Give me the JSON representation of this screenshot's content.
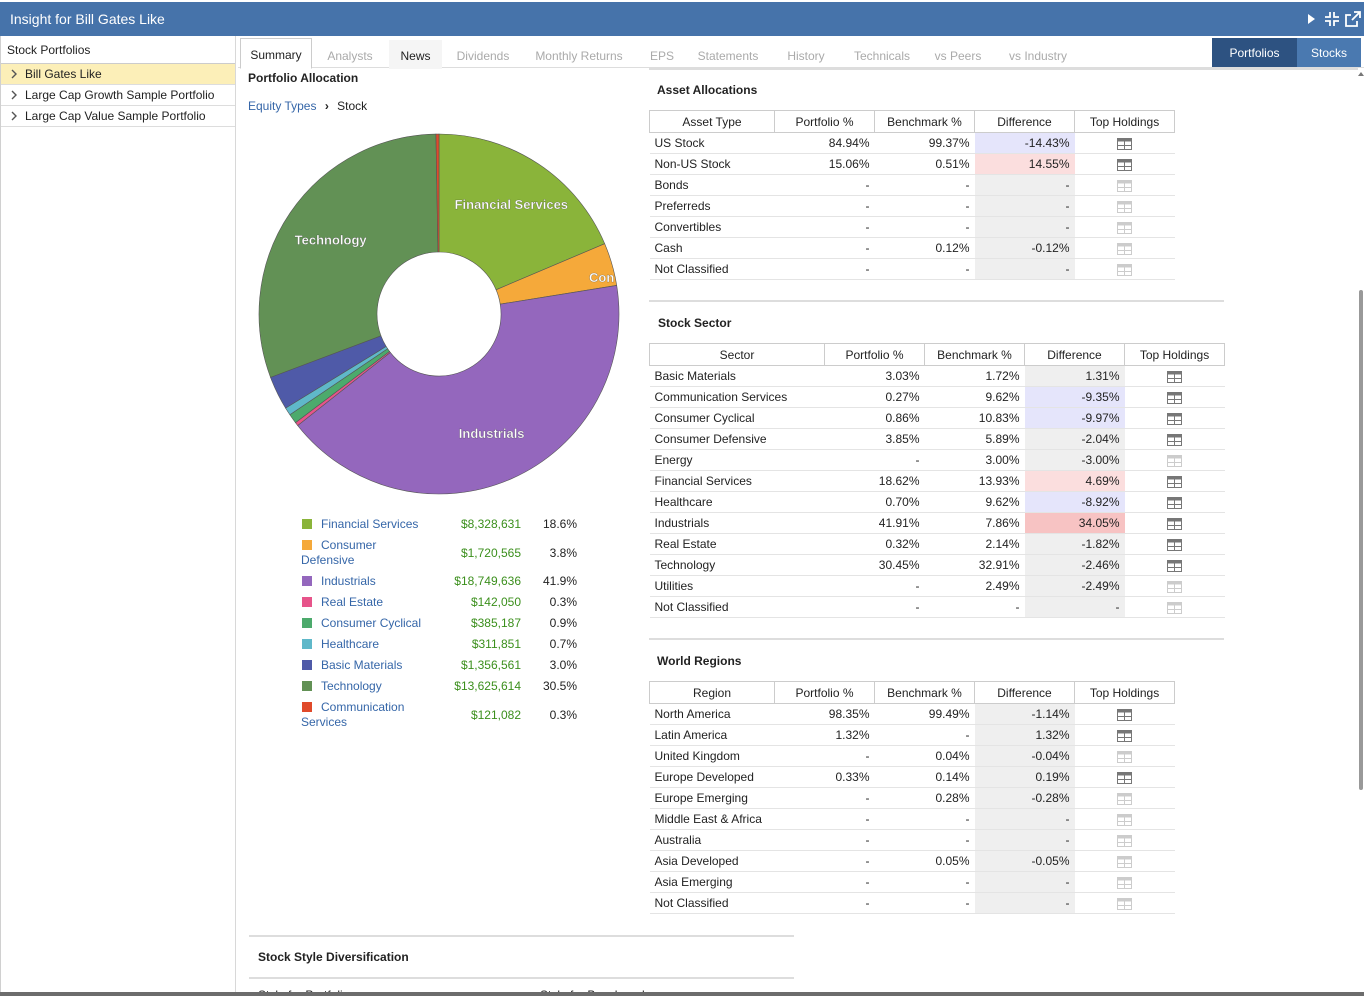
{
  "window": {
    "title": "Insight for Bill Gates Like"
  },
  "sidebar": {
    "header": "Stock Portfolios",
    "items": [
      {
        "label": "Bill Gates Like",
        "selected": true
      },
      {
        "label": "Large Cap Growth Sample Portfolio",
        "selected": false
      },
      {
        "label": "Large Cap Value Sample Portfolio",
        "selected": false
      }
    ]
  },
  "tabs": [
    "Summary",
    "Analysts",
    "News",
    "Dividends",
    "Monthly Returns",
    "EPS",
    "Statements",
    "History",
    "Technicals",
    "vs Peers",
    "vs Industry"
  ],
  "active_tab": "Summary",
  "toggle": {
    "portfolios": "Portfolios",
    "stocks": "Stocks",
    "active": "Portfolios"
  },
  "allocation": {
    "title": "Portfolio Allocation",
    "crumb_link": "Equity Types",
    "crumb_current": "Stock"
  },
  "chart_data": {
    "type": "pie",
    "donut": true,
    "slices": [
      {
        "label": "Financial Services",
        "pie_label": "Financial Services",
        "value": 8328631,
        "pct": "18.6%",
        "color": "#8ab43a"
      },
      {
        "label": "Consumer Defensive",
        "pie_label": "Con",
        "value": 1720565,
        "pct": "3.8%",
        "color": "#f5a93a"
      },
      {
        "label": "Industrials",
        "pie_label": "Industrials",
        "value": 18749636,
        "pct": "41.9%",
        "color": "#9467bd"
      },
      {
        "label": "Real Estate",
        "pie_label": "",
        "value": 142050,
        "pct": "0.3%",
        "color": "#e7548a"
      },
      {
        "label": "Consumer Cyclical",
        "pie_label": "",
        "value": 385187,
        "pct": "0.9%",
        "color": "#4caa6c"
      },
      {
        "label": "Healthcare",
        "pie_label": "",
        "value": 311851,
        "pct": "0.7%",
        "color": "#5fb8c9"
      },
      {
        "label": "Basic Materials",
        "pie_label": "",
        "value": 1356561,
        "pct": "3.0%",
        "color": "#4f5aa8"
      },
      {
        "label": "Technology",
        "pie_label": "Technology",
        "value": 13625614,
        "pct": "30.5%",
        "color": "#629155"
      },
      {
        "label": "Communication Services",
        "pie_label": "",
        "value": 121082,
        "pct": "0.3%",
        "color": "#e04a2a"
      }
    ],
    "legend": [
      {
        "name": "Financial Services",
        "value": "$8,328,631",
        "pct": "18.6%",
        "color": "#8ab43a"
      },
      {
        "name": "Consumer Defensive",
        "value": "$1,720,565",
        "pct": "3.8%",
        "color": "#f5a93a"
      },
      {
        "name": "Industrials",
        "value": "$18,749,636",
        "pct": "41.9%",
        "color": "#9467bd"
      },
      {
        "name": "Real Estate",
        "value": "$142,050",
        "pct": "0.3%",
        "color": "#e7548a"
      },
      {
        "name": "Consumer Cyclical",
        "value": "$385,187",
        "pct": "0.9%",
        "color": "#4caa6c"
      },
      {
        "name": "Healthcare",
        "value": "$311,851",
        "pct": "0.7%",
        "color": "#5fb8c9"
      },
      {
        "name": "Basic Materials",
        "value": "$1,356,561",
        "pct": "3.0%",
        "color": "#4f5aa8"
      },
      {
        "name": "Technology",
        "value": "$13,625,614",
        "pct": "30.5%",
        "color": "#629155"
      },
      {
        "name": "Communication Services",
        "value": "$121,082",
        "pct": "0.3%",
        "color": "#e04a2a"
      }
    ]
  },
  "asset_allocations": {
    "title": "Asset Allocations",
    "columns": [
      "Asset Type",
      "Portfolio %",
      "Benchmark %",
      "Difference",
      "Top Holdings"
    ],
    "rows": [
      {
        "name": "US Stock",
        "portfolio": "84.94%",
        "benchmark": "99.37%",
        "difference": "-14.43%",
        "tone": "neg",
        "holdings": true
      },
      {
        "name": "Non-US Stock",
        "portfolio": "15.06%",
        "benchmark": "0.51%",
        "difference": "14.55%",
        "tone": "pos",
        "holdings": true
      },
      {
        "name": "Bonds",
        "portfolio": "-",
        "benchmark": "-",
        "difference": "-",
        "tone": "",
        "holdings": false
      },
      {
        "name": "Preferreds",
        "portfolio": "-",
        "benchmark": "-",
        "difference": "-",
        "tone": "",
        "holdings": false
      },
      {
        "name": "Convertibles",
        "portfolio": "-",
        "benchmark": "-",
        "difference": "-",
        "tone": "",
        "holdings": false
      },
      {
        "name": "Cash",
        "portfolio": "-",
        "benchmark": "0.12%",
        "difference": "-0.12%",
        "tone": "",
        "holdings": false
      },
      {
        "name": "Not Classified",
        "portfolio": "-",
        "benchmark": "-",
        "difference": "-",
        "tone": "",
        "holdings": false
      }
    ]
  },
  "stock_sector": {
    "title": "Stock Sector",
    "columns": [
      "Sector",
      "Portfolio %",
      "Benchmark %",
      "Difference",
      "Top Holdings"
    ],
    "rows": [
      {
        "name": "Basic Materials",
        "portfolio": "3.03%",
        "benchmark": "1.72%",
        "difference": "1.31%",
        "tone": "",
        "holdings": true
      },
      {
        "name": "Communication Services",
        "portfolio": "0.27%",
        "benchmark": "9.62%",
        "difference": "-9.35%",
        "tone": "neg",
        "holdings": true
      },
      {
        "name": "Consumer Cyclical",
        "portfolio": "0.86%",
        "benchmark": "10.83%",
        "difference": "-9.97%",
        "tone": "neg",
        "holdings": true
      },
      {
        "name": "Consumer Defensive",
        "portfolio": "3.85%",
        "benchmark": "5.89%",
        "difference": "-2.04%",
        "tone": "",
        "holdings": true
      },
      {
        "name": "Energy",
        "portfolio": "-",
        "benchmark": "3.00%",
        "difference": "-3.00%",
        "tone": "",
        "holdings": false
      },
      {
        "name": "Financial Services",
        "portfolio": "18.62%",
        "benchmark": "13.93%",
        "difference": "4.69%",
        "tone": "pos",
        "holdings": true
      },
      {
        "name": "Healthcare",
        "portfolio": "0.70%",
        "benchmark": "9.62%",
        "difference": "-8.92%",
        "tone": "neg",
        "holdings": true
      },
      {
        "name": "Industrials",
        "portfolio": "41.91%",
        "benchmark": "7.86%",
        "difference": "34.05%",
        "tone": "pos2",
        "holdings": true
      },
      {
        "name": "Real Estate",
        "portfolio": "0.32%",
        "benchmark": "2.14%",
        "difference": "-1.82%",
        "tone": "",
        "holdings": true
      },
      {
        "name": "Technology",
        "portfolio": "30.45%",
        "benchmark": "32.91%",
        "difference": "-2.46%",
        "tone": "",
        "holdings": true
      },
      {
        "name": "Utilities",
        "portfolio": "-",
        "benchmark": "2.49%",
        "difference": "-2.49%",
        "tone": "",
        "holdings": false
      },
      {
        "name": "Not Classified",
        "portfolio": "-",
        "benchmark": "-",
        "difference": "-",
        "tone": "",
        "holdings": false
      }
    ]
  },
  "world_regions": {
    "title": "World Regions",
    "columns": [
      "Region",
      "Portfolio %",
      "Benchmark %",
      "Difference",
      "Top Holdings"
    ],
    "rows": [
      {
        "name": "North America",
        "portfolio": "98.35%",
        "benchmark": "99.49%",
        "difference": "-1.14%",
        "tone": "",
        "holdings": true
      },
      {
        "name": "Latin America",
        "portfolio": "1.32%",
        "benchmark": "-",
        "difference": "1.32%",
        "tone": "",
        "holdings": true
      },
      {
        "name": "United Kingdom",
        "portfolio": "-",
        "benchmark": "0.04%",
        "difference": "-0.04%",
        "tone": "",
        "holdings": false
      },
      {
        "name": "Europe Developed",
        "portfolio": "0.33%",
        "benchmark": "0.14%",
        "difference": "0.19%",
        "tone": "",
        "holdings": true
      },
      {
        "name": "Europe Emerging",
        "portfolio": "-",
        "benchmark": "0.28%",
        "difference": "-0.28%",
        "tone": "",
        "holdings": false
      },
      {
        "name": "Middle East & Africa",
        "portfolio": "-",
        "benchmark": "-",
        "difference": "-",
        "tone": "",
        "holdings": false
      },
      {
        "name": "Australia",
        "portfolio": "-",
        "benchmark": "-",
        "difference": "-",
        "tone": "",
        "holdings": false
      },
      {
        "name": "Asia Developed",
        "portfolio": "-",
        "benchmark": "0.05%",
        "difference": "-0.05%",
        "tone": "",
        "holdings": false
      },
      {
        "name": "Asia Emerging",
        "portfolio": "-",
        "benchmark": "-",
        "difference": "-",
        "tone": "",
        "holdings": false
      },
      {
        "name": "Not Classified",
        "portfolio": "-",
        "benchmark": "-",
        "difference": "-",
        "tone": "",
        "holdings": false
      }
    ]
  },
  "style_diversification": {
    "title": "Stock Style Diversification",
    "left_sub": "Style for Portfolio",
    "right_sub": "Style for Benchmark"
  }
}
